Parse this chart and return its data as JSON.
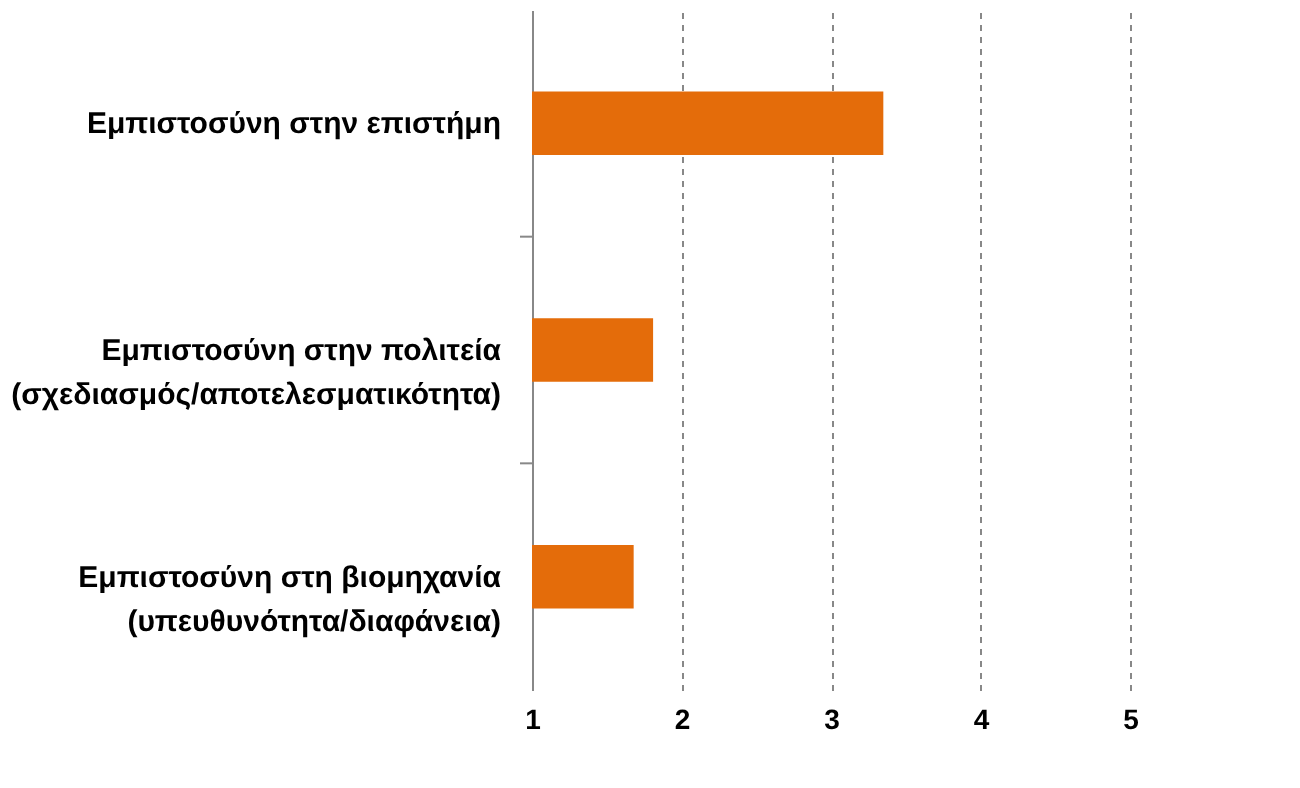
{
  "chart_data": {
    "type": "bar",
    "orientation": "horizontal",
    "categories": [
      "Εμπιστοσύνη στην επιστήμη",
      "Εμπιστοσύνη στην πολιτεία\n(σχεδιασμός/αποτελεσματικότητα)",
      "Εμπιστοσύνη στη βιομηχανία\n(υπευθυνότητα/διαφάνεια)"
    ],
    "values": [
      3.35,
      1.81,
      1.68
    ],
    "color": "#e46c0a",
    "xlim": [
      1,
      5
    ],
    "xticks": [
      1,
      2,
      3,
      4,
      5
    ],
    "grid": "x"
  }
}
